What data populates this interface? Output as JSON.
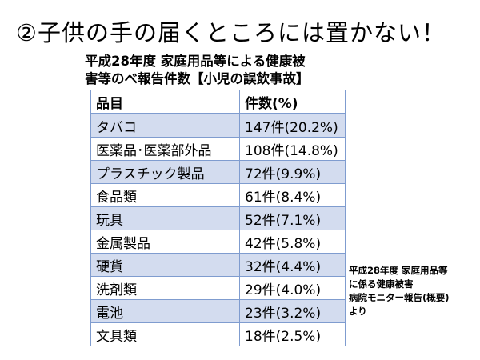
{
  "title": "②子供の手の届くところには置かない！",
  "caption": {
    "line1": "平成28年度 家庭用品等による健康被",
    "line2": "害等のべ報告件数【小児の誤飲事故】"
  },
  "table": {
    "headers": [
      "品目",
      "件数(%)"
    ],
    "rows": [
      {
        "item": "タバコ",
        "count": "147件(20.2%)"
      },
      {
        "item": "医薬品･医薬部外品",
        "count": "108件(14.8%)"
      },
      {
        "item": "プラスチック製品",
        "count": "72件(9.9%)"
      },
      {
        "item": "食品類",
        "count": "61件(8.4%)"
      },
      {
        "item": "玩具",
        "count": "52件(7.1%)"
      },
      {
        "item": "金属製品",
        "count": "42件(5.8%)"
      },
      {
        "item": "硬貨",
        "count": "32件(4.4%)"
      },
      {
        "item": "洗剤類",
        "count": "29件(4.0%)"
      },
      {
        "item": "電池",
        "count": "23件(3.2%)"
      },
      {
        "item": "文具類",
        "count": "18件(2.5%)"
      }
    ]
  },
  "source": {
    "lines": [
      "平成28年度 家庭用品等",
      "に係る健康被害",
      "病院モニター報告(概要)",
      "より"
    ]
  },
  "colors": {
    "band": "#d3dcef",
    "border": "#7f9ccf"
  }
}
